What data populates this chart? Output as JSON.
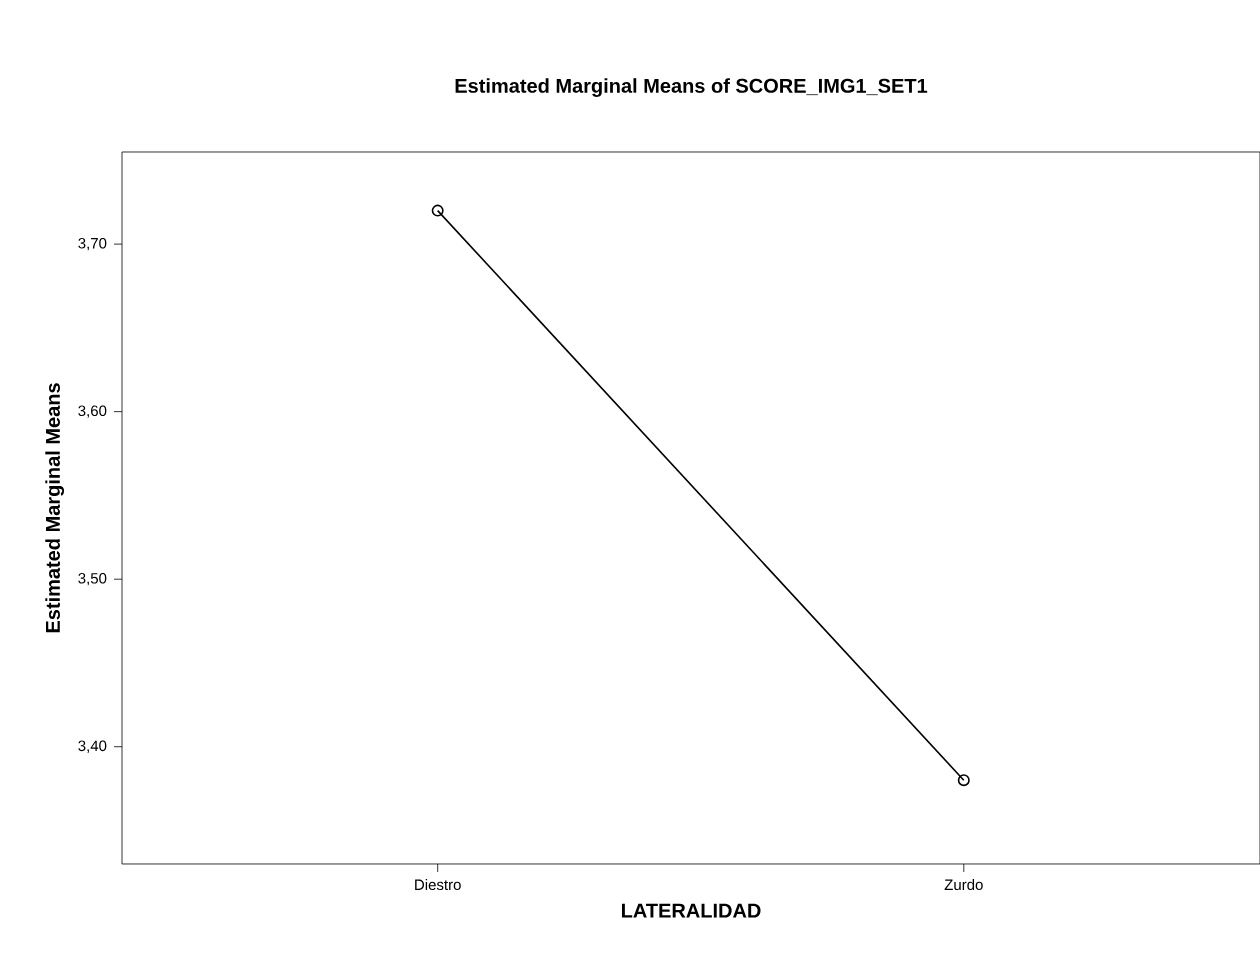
{
  "chart_data": {
    "type": "line",
    "title": "Estimated Marginal Means of SCORE_IMG1_SET1",
    "xlabel": "LATERALIDAD",
    "ylabel": "Estimated Marginal Means",
    "categories": [
      "Diestro",
      "Zurdo"
    ],
    "series": [
      {
        "color": "#000000",
        "values": [
          3.72,
          3.38
        ]
      }
    ],
    "ylim": [
      3.33,
      3.755
    ],
    "yticks": [
      {
        "value": 3.4,
        "label": "3,40"
      },
      {
        "value": 3.5,
        "label": "3,50"
      },
      {
        "value": 3.6,
        "label": "3,60"
      },
      {
        "value": 3.7,
        "label": "3,70"
      }
    ],
    "marker": "circle",
    "line_style": "solid",
    "grid": false
  }
}
